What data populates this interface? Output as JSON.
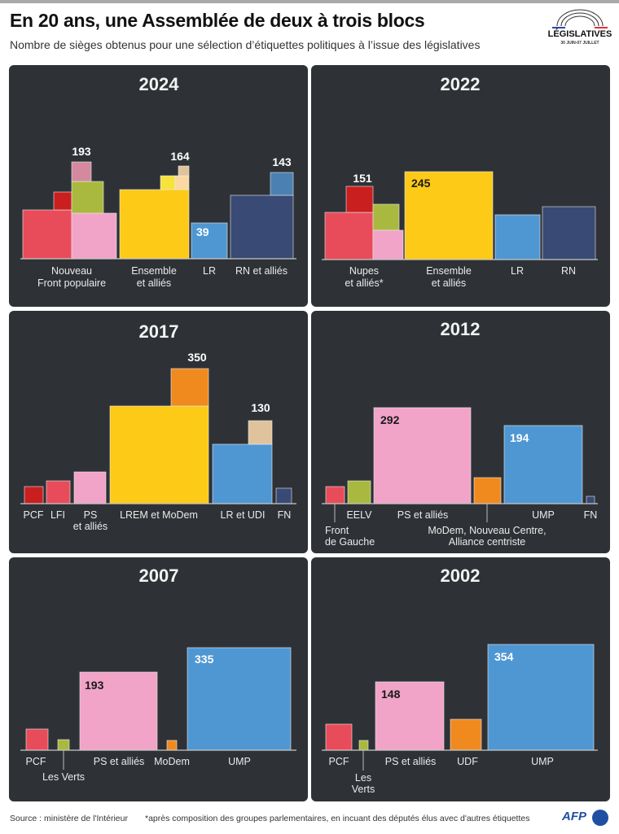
{
  "header": {
    "title": "En 20 ans, une Assemblée de deux à trois blocs",
    "subtitle": "Nombre de sièges obtenus pour une sélection d’étiquettes politiques à l’issue des législatives",
    "logo_text": "LÉGISLATIVES",
    "logo_date": "30 JUIN-07 JUILLET"
  },
  "footer": {
    "source": "Source : ministère de l'Intérieur",
    "note": "*après composition des groupes parlementaires, en incuant des députés élus avec d'autres étiquettes",
    "brand": "AFP"
  },
  "colors": {
    "panel_bg": "#2e3236",
    "lfi_red": "#e84c5a",
    "pcf_red": "#c91f1f",
    "ps_pink": "#f1a3c8",
    "green": "#a9b93f",
    "mauve": "#d4899f",
    "yellow": "#fdca17",
    "light_yellow": "#f6e33c",
    "peach": "#fad8a0",
    "tan": "#dfc39c",
    "blue": "#4f97d3",
    "navy": "#394a74",
    "steel_blue": "#4b80b2",
    "orange": "#f08a1f"
  },
  "chart_data": {
    "type": "bar",
    "encoding": "area proportional to seats",
    "panels": [
      {
        "year": "2024",
        "groups": [
          {
            "label": [
              "Nouveau",
              "Front populaire"
            ],
            "value_label": "193",
            "total": 193,
            "segments": [
              {
                "seats": 75,
                "color": "#e84c5a"
              },
              {
                "seats": 10,
                "color": "#c91f1f"
              },
              {
                "seats": 64,
                "color": "#f1a3c8"
              },
              {
                "seats": 32,
                "color": "#a9b93f"
              },
              {
                "seats": 12,
                "color": "#d4899f"
              }
            ]
          },
          {
            "label": [
              "Ensemble",
              "et alliés"
            ],
            "value_label": "164",
            "total": 164,
            "segments": [
              {
                "seats": 149,
                "color": "#fdca17"
              },
              {
                "seats": 6,
                "color": "#f6e33c"
              },
              {
                "seats": 6,
                "color": "#fad8a0"
              },
              {
                "seats": 3,
                "color": "#dfc39c"
              }
            ]
          },
          {
            "label": [
              "LR"
            ],
            "value_label": "39",
            "total": 39,
            "segments": [
              {
                "seats": 39,
                "color": "#4f97d3"
              }
            ]
          },
          {
            "label": [
              "RN et alliés"
            ],
            "value_label": "143",
            "total": 143,
            "segments": [
              {
                "seats": 126,
                "color": "#394a74"
              },
              {
                "seats": 17,
                "color": "#4b80b2"
              }
            ]
          }
        ]
      },
      {
        "year": "2022",
        "groups": [
          {
            "label": [
              "Nupes",
              "et alliés*"
            ],
            "value_label": "151",
            "total": 151,
            "segments": [
              {
                "seats": 75,
                "color": "#e84c5a"
              },
              {
                "seats": 22,
                "color": "#c91f1f"
              },
              {
                "seats": 23,
                "color": "#a9b93f"
              },
              {
                "seats": 31,
                "color": "#f1a3c8"
              }
            ]
          },
          {
            "label": [
              "Ensemble",
              "et alliés"
            ],
            "value_label": "245",
            "total": 245,
            "segments": [
              {
                "seats": 245,
                "color": "#fdca17"
              }
            ]
          },
          {
            "label": [
              "LR"
            ],
            "value_label": "",
            "total": 62,
            "segments": [
              {
                "seats": 62,
                "color": "#4f97d3"
              }
            ]
          },
          {
            "label": [
              "RN"
            ],
            "value_label": "",
            "total": 89,
            "segments": [
              {
                "seats": 89,
                "color": "#394a74"
              }
            ]
          }
        ]
      },
      {
        "year": "2017",
        "groups": [
          {
            "label": [
              "PCF"
            ],
            "value_label": "",
            "total": 11,
            "segments": [
              {
                "seats": 11,
                "color": "#c91f1f"
              }
            ]
          },
          {
            "label": [
              "LFI"
            ],
            "value_label": "",
            "total": 17,
            "segments": [
              {
                "seats": 17,
                "color": "#e84c5a"
              }
            ]
          },
          {
            "label": [
              "PS",
              "et alliés"
            ],
            "value_label": "",
            "total": 33,
            "segments": [
              {
                "seats": 33,
                "color": "#f1a3c8"
              }
            ]
          },
          {
            "label": [
              "LREM et MoDem"
            ],
            "value_label": "350",
            "total": 350,
            "segments": [
              {
                "seats": 308,
                "color": "#fdca17"
              },
              {
                "seats": 42,
                "color": "#f08a1f"
              }
            ]
          },
          {
            "label": [
              "LR et UDI"
            ],
            "value_label": "130",
            "total": 130,
            "segments": [
              {
                "seats": 112,
                "color": "#4f97d3"
              },
              {
                "seats": 18,
                "color": "#dfc39c"
              }
            ]
          },
          {
            "label": [
              "FN"
            ],
            "value_label": "",
            "total": 8,
            "segments": [
              {
                "seats": 8,
                "color": "#394a74"
              }
            ]
          }
        ]
      },
      {
        "year": "2012",
        "groups": [
          {
            "label": [
              "Front",
              "de Gauche"
            ],
            "value_label": "",
            "total": 10,
            "segments": [
              {
                "seats": 10,
                "color": "#e84c5a"
              }
            ]
          },
          {
            "label": [
              "EELV"
            ],
            "value_label": "",
            "total": 17,
            "segments": [
              {
                "seats": 17,
                "color": "#a9b93f"
              }
            ]
          },
          {
            "label": [
              "PS et alliés"
            ],
            "value_label": "292",
            "total": 292,
            "segments": [
              {
                "seats": 292,
                "color": "#f1a3c8"
              }
            ]
          },
          {
            "label": [
              "MoDem, Nouveau Centre,",
              "Alliance centriste"
            ],
            "value_label": "",
            "total": 22,
            "segments": [
              {
                "seats": 22,
                "color": "#f08a1f"
              }
            ]
          },
          {
            "label": [
              "UMP"
            ],
            "value_label": "194",
            "total": 194,
            "segments": [
              {
                "seats": 194,
                "color": "#4f97d3"
              }
            ]
          },
          {
            "label": [
              "FN"
            ],
            "value_label": "",
            "total": 2,
            "segments": [
              {
                "seats": 2,
                "color": "#394a74"
              }
            ]
          }
        ]
      },
      {
        "year": "2007",
        "groups": [
          {
            "label": [
              "PCF"
            ],
            "value_label": "",
            "total": 15,
            "segments": [
              {
                "seats": 15,
                "color": "#e84c5a"
              }
            ]
          },
          {
            "label": [
              "Les Verts"
            ],
            "value_label": "",
            "total": 4,
            "segments": [
              {
                "seats": 4,
                "color": "#a9b93f"
              }
            ]
          },
          {
            "label": [
              "PS et alliés"
            ],
            "value_label": "193",
            "total": 193,
            "segments": [
              {
                "seats": 193,
                "color": "#f1a3c8"
              }
            ]
          },
          {
            "label": [
              "MoDem"
            ],
            "value_label": "",
            "total": 3,
            "segments": [
              {
                "seats": 3,
                "color": "#f08a1f"
              }
            ]
          },
          {
            "label": [
              "UMP"
            ],
            "value_label": "335",
            "total": 335,
            "segments": [
              {
                "seats": 335,
                "color": "#4f97d3"
              }
            ]
          }
        ]
      },
      {
        "year": "2002",
        "groups": [
          {
            "label": [
              "PCF"
            ],
            "value_label": "",
            "total": 21,
            "segments": [
              {
                "seats": 21,
                "color": "#e84c5a"
              }
            ]
          },
          {
            "label": [
              "Les",
              "Verts"
            ],
            "value_label": "",
            "total": 3,
            "segments": [
              {
                "seats": 3,
                "color": "#a9b93f"
              }
            ]
          },
          {
            "label": [
              "PS et alliés"
            ],
            "value_label": "148",
            "total": 148,
            "segments": [
              {
                "seats": 148,
                "color": "#f1a3c8"
              }
            ]
          },
          {
            "label": [
              "UDF"
            ],
            "value_label": "",
            "total": 29,
            "segments": [
              {
                "seats": 29,
                "color": "#f08a1f"
              }
            ]
          },
          {
            "label": [
              "UMP"
            ],
            "value_label": "354",
            "total": 354,
            "segments": [
              {
                "seats": 354,
                "color": "#4f97d3"
              }
            ]
          }
        ]
      }
    ]
  }
}
